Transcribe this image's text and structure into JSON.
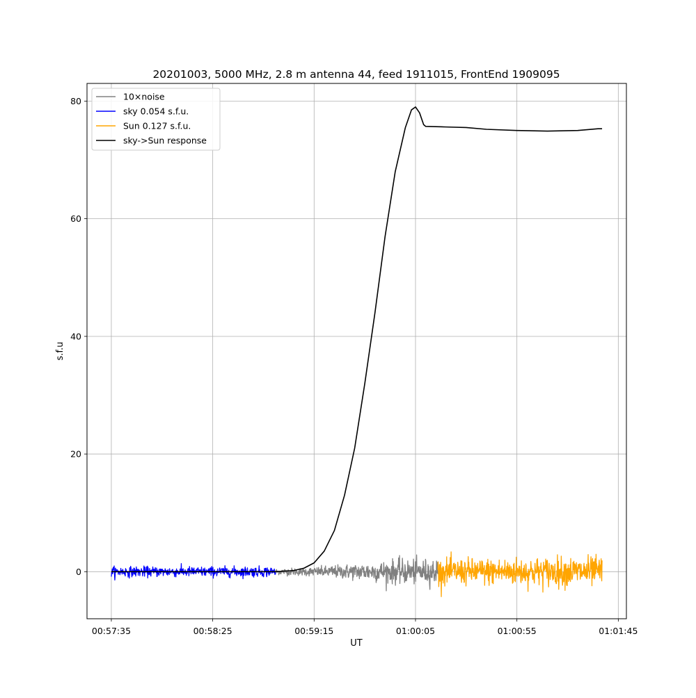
{
  "chart_data": {
    "type": "line",
    "title": "20201003, 5000 MHz, 2.8 m antenna 44, feed 1911015, FrontEnd 1909095",
    "xlabel": "UT",
    "ylabel": "s.f.u",
    "x_ticks": [
      "00:57:35",
      "00:58:25",
      "00:59:15",
      "01:00:05",
      "01:00:55",
      "01:01:45"
    ],
    "xlim": [
      "00:57:23",
      "01:01:49"
    ],
    "y_ticks": [
      0,
      20,
      40,
      60,
      80
    ],
    "ylim": [
      -8,
      83
    ],
    "grid": true,
    "legend_position": "top-left",
    "legend": [
      {
        "label": "10×noise",
        "color": "#808080"
      },
      {
        "label": "sky 0.054 s.f.u.",
        "color": "#0000ff"
      },
      {
        "label": "Sun 0.127 s.f.u.",
        "color": "#ffa500"
      },
      {
        "label": "sky->Sun response",
        "color": "#000000"
      }
    ],
    "series": [
      {
        "name": "10×noise",
        "color": "#808080",
        "x_range": [
          "00:58:56",
          "01:00:16"
        ],
        "amplitude_profile": [
          {
            "x": "00:58:56",
            "amplitude": 0.6
          },
          {
            "x": "00:59:15",
            "amplitude": 0.9
          },
          {
            "x": "00:59:35",
            "amplitude": 1.6
          },
          {
            "x": "00:59:55",
            "amplitude": 2.4
          },
          {
            "x": "01:00:16",
            "amplitude": 2.5
          }
        ]
      },
      {
        "name": "sky 0.054 s.f.u.",
        "color": "#0000ff",
        "x_range": [
          "00:57:35",
          "00:58:56"
        ],
        "amplitude_profile": [
          {
            "x": "00:57:35",
            "amplitude": 1.0
          },
          {
            "x": "00:58:56",
            "amplitude": 1.0
          }
        ]
      },
      {
        "name": "Sun 0.127 s.f.u.",
        "color": "#ffa500",
        "x_range": [
          "01:00:16",
          "01:01:37"
        ],
        "amplitude_profile": [
          {
            "x": "01:00:16",
            "amplitude": 2.5
          },
          {
            "x": "01:01:00",
            "amplitude": 2.8
          },
          {
            "x": "01:01:37",
            "amplitude": 3.0
          }
        ]
      },
      {
        "name": "sky->Sun response",
        "color": "#000000",
        "points": [
          [
            "00:57:35",
            0.0
          ],
          [
            "00:58:56",
            0.0
          ],
          [
            "00:59:05",
            0.2
          ],
          [
            "00:59:10",
            0.6
          ],
          [
            "00:59:15",
            1.5
          ],
          [
            "00:59:20",
            3.5
          ],
          [
            "00:59:25",
            7.0
          ],
          [
            "00:59:30",
            13.0
          ],
          [
            "00:59:35",
            21.0
          ],
          [
            "00:59:40",
            32.0
          ],
          [
            "00:59:45",
            44.0
          ],
          [
            "00:59:50",
            57.0
          ],
          [
            "00:59:55",
            68.0
          ],
          [
            "01:00:00",
            75.5
          ],
          [
            "01:00:03",
            78.5
          ],
          [
            "01:00:05",
            79.0
          ],
          [
            "01:00:07",
            78.0
          ],
          [
            "01:00:09",
            76.0
          ],
          [
            "01:00:10",
            75.7
          ],
          [
            "01:00:20",
            75.6
          ],
          [
            "01:00:30",
            75.5
          ],
          [
            "01:00:40",
            75.2
          ],
          [
            "01:00:55",
            75.0
          ],
          [
            "01:01:10",
            74.9
          ],
          [
            "01:01:25",
            75.0
          ],
          [
            "01:01:35",
            75.3
          ],
          [
            "01:01:37",
            75.3
          ]
        ]
      }
    ]
  }
}
